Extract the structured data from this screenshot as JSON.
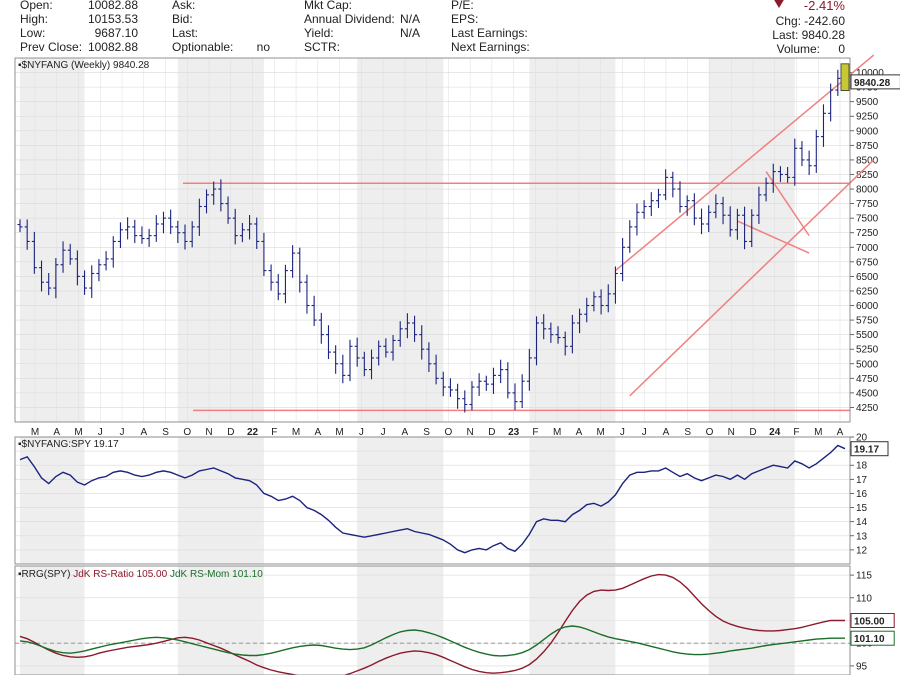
{
  "quote": {
    "col1": [
      {
        "label": "Open:",
        "value": "10082.88"
      },
      {
        "label": "High:",
        "value": "10153.53"
      },
      {
        "label": "Low:",
        "value": "9687.10"
      },
      {
        "label": "Prev Close:",
        "value": "10082.88"
      }
    ],
    "col2": [
      {
        "label": "Ask:",
        "value": ""
      },
      {
        "label": "Bid:",
        "value": ""
      },
      {
        "label": "Last:",
        "value": ""
      },
      {
        "label": "Optionable:",
        "value": "no"
      }
    ],
    "col3": [
      {
        "label": "Mkt Cap:",
        "value": ""
      },
      {
        "label": "Annual Dividend:",
        "value": "N/A"
      },
      {
        "label": "Yield:",
        "value": "N/A"
      },
      {
        "label": "SCTR:",
        "value": ""
      }
    ],
    "col4": [
      {
        "label": "P/E:",
        "value": ""
      },
      {
        "label": "EPS:",
        "value": ""
      },
      {
        "label": "Last Earnings:",
        "value": ""
      },
      {
        "label": "Next Earnings:",
        "value": ""
      }
    ],
    "pct_change": "-2.41%",
    "chg": "Chg: -242.60",
    "last": "Last: 9840.28",
    "volume_label": "Volume:",
    "volume_value": "0",
    "down_color": "#8b1a2b"
  },
  "chart_data": [
    {
      "type": "ohlc",
      "title": "$NYFANG (Weekly) 9840.28",
      "last_label": "9840.28",
      "series_color": "#1a237e",
      "ylim": [
        4000,
        10250
      ],
      "yticks": [
        4250,
        4500,
        4750,
        5000,
        5250,
        5500,
        5750,
        6000,
        6250,
        6500,
        6750,
        7000,
        7250,
        7500,
        7750,
        8000,
        8250,
        8500,
        8750,
        9000,
        9250,
        9500,
        9750,
        10000
      ],
      "xticks": [
        "M",
        "A",
        "M",
        "J",
        "J",
        "A",
        "S",
        "O",
        "N",
        "D",
        "22",
        "F",
        "M",
        "A",
        "M",
        "J",
        "J",
        "A",
        "S",
        "O",
        "N",
        "D",
        "23",
        "F",
        "M",
        "A",
        "M",
        "J",
        "J",
        "A",
        "S",
        "O",
        "N",
        "D",
        "24",
        "F",
        "M",
        "A"
      ],
      "closes": [
        7350,
        7100,
        6650,
        6400,
        6300,
        6700,
        6950,
        6800,
        6500,
        6300,
        6550,
        6700,
        6800,
        7100,
        7300,
        7350,
        7200,
        7150,
        7200,
        7400,
        7500,
        7350,
        7250,
        7100,
        7350,
        7700,
        7900,
        8000,
        7750,
        7500,
        7200,
        7300,
        7400,
        7100,
        6600,
        6400,
        6200,
        6600,
        6900,
        6400,
        6000,
        5750,
        5500,
        5200,
        5000,
        4800,
        5300,
        5100,
        4900,
        5100,
        5300,
        5200,
        5400,
        5600,
        5700,
        5500,
        5250,
        5000,
        4750,
        4600,
        4550,
        4400,
        4300,
        4600,
        4700,
        4650,
        4800,
        4900,
        4500,
        4350,
        4700,
        5100,
        5700,
        5600,
        5500,
        5450,
        5300,
        5700,
        5850,
        6000,
        6150,
        6000,
        6200,
        6550,
        7000,
        7350,
        7600,
        7700,
        7800,
        7900,
        8200,
        8000,
        7700,
        7800,
        7500,
        7400,
        7600,
        7750,
        7550,
        7300,
        7550,
        7100,
        7550,
        7900,
        8100,
        8300,
        8250,
        8200,
        8700,
        8500,
        8400,
        8900,
        9300,
        9700,
        9900,
        9840
      ],
      "hlines": [
        {
          "y": 8100,
          "label": ""
        },
        {
          "y": 4200,
          "label": ""
        }
      ],
      "channel": [
        {
          "from": [
            83,
            6600
          ],
          "to": [
            119,
            10300
          ]
        },
        {
          "from": [
            85,
            4450
          ],
          "to": [
            119,
            8500
          ]
        },
        {
          "from": [
            104,
            8300
          ],
          "to": [
            110,
            7200
          ]
        },
        {
          "from": [
            100,
            7450
          ],
          "to": [
            110,
            6900
          ]
        }
      ]
    },
    {
      "type": "line",
      "title": "$NYFANG:SPY 19.17",
      "last_label": "19.17",
      "series_color": "#1a237e",
      "ylim": [
        11,
        20
      ],
      "yticks": [
        12,
        13,
        14,
        15,
        16,
        17,
        18,
        19,
        20
      ],
      "values": [
        18.4,
        18.6,
        17.9,
        17.1,
        16.7,
        17.2,
        17.5,
        17.3,
        16.8,
        16.6,
        16.9,
        17.1,
        17.2,
        17.5,
        17.6,
        17.5,
        17.3,
        17.2,
        17.3,
        17.5,
        17.6,
        17.5,
        17.3,
        17.1,
        17.3,
        17.6,
        17.7,
        17.8,
        17.6,
        17.4,
        17.1,
        17.0,
        16.9,
        16.6,
        16.0,
        15.8,
        15.5,
        15.6,
        15.8,
        15.5,
        15.0,
        14.8,
        14.5,
        14.1,
        13.6,
        13.2,
        13.1,
        13.0,
        12.9,
        13.0,
        13.1,
        13.2,
        13.3,
        13.4,
        13.5,
        13.3,
        13.2,
        13.1,
        12.9,
        12.7,
        12.4,
        12.0,
        11.8,
        12.0,
        12.1,
        12.0,
        12.3,
        12.5,
        12.1,
        11.9,
        12.4,
        13.1,
        14.0,
        14.2,
        14.1,
        14.1,
        14.0,
        14.5,
        14.8,
        15.2,
        15.3,
        15.1,
        15.4,
        15.9,
        16.7,
        17.3,
        17.5,
        17.5,
        17.6,
        17.6,
        17.8,
        17.5,
        17.2,
        17.4,
        17.1,
        16.9,
        17.1,
        17.3,
        17.2,
        17.0,
        17.3,
        17.0,
        17.4,
        17.6,
        17.8,
        18.0,
        17.9,
        17.8,
        18.3,
        18.1,
        17.8,
        18.1,
        18.5,
        18.9,
        19.4,
        19.17
      ]
    },
    {
      "type": "line",
      "title": "RRG(SPY)",
      "ylim": [
        93,
        117
      ],
      "yticks": [
        95,
        100,
        105,
        110,
        115
      ],
      "ref_line": 100,
      "series": [
        {
          "name": "JdK RS-Ratio 105.00",
          "color": "#8b1a2b",
          "last_label": "105.00",
          "values": [
            101.5,
            101.0,
            100.2,
            99.3,
            98.5,
            97.8,
            97.3,
            97.0,
            96.9,
            97.0,
            97.3,
            97.8,
            98.2,
            98.5,
            98.8,
            99.1,
            99.3,
            99.5,
            99.7,
            100.0,
            100.4,
            100.8,
            101.2,
            101.3,
            101.1,
            100.7,
            100.1,
            99.5,
            98.9,
            98.2,
            97.4,
            96.7,
            96.0,
            95.2,
            94.6,
            94.1,
            93.7,
            93.4,
            93.1,
            92.8,
            92.5,
            92.3,
            92.2,
            92.3,
            92.5,
            92.8,
            93.3,
            93.9,
            94.5,
            95.2,
            96.0,
            96.7,
            97.3,
            97.8,
            98.1,
            98.3,
            98.2,
            97.9,
            97.5,
            96.9,
            96.2,
            95.5,
            94.8,
            94.2,
            93.8,
            93.5,
            93.4,
            93.5,
            93.7,
            94.0,
            94.5,
            95.3,
            96.5,
            98.1,
            100.0,
            102.3,
            104.8,
            107.2,
            109.2,
            110.6,
            111.4,
            111.7,
            111.6,
            111.7,
            112.1,
            112.8,
            113.5,
            114.2,
            114.8,
            115.1,
            115.0,
            114.5,
            113.5,
            112.1,
            110.4,
            108.7,
            107.2,
            105.9,
            104.9,
            104.2,
            103.7,
            103.3,
            103.0,
            102.8,
            102.7,
            102.7,
            102.8,
            103.0,
            103.2,
            103.5,
            103.9,
            104.3,
            104.7,
            105.0,
            105.0,
            105.0
          ]
        },
        {
          "name": "JdK RS-Mom 101.10",
          "color": "#1b6e2a",
          "last_label": "101.10",
          "values": [
            100.5,
            100.3,
            99.9,
            99.3,
            98.7,
            98.2,
            97.9,
            97.8,
            98.0,
            98.3,
            98.7,
            99.1,
            99.5,
            99.8,
            100.1,
            100.4,
            100.7,
            101.0,
            101.2,
            101.3,
            101.2,
            101.0,
            100.7,
            100.3,
            99.9,
            99.5,
            99.1,
            98.7,
            98.3,
            97.9,
            97.6,
            97.4,
            97.3,
            97.3,
            97.5,
            97.8,
            98.2,
            98.6,
            99.0,
            99.3,
            99.5,
            99.6,
            99.5,
            99.2,
            98.9,
            98.7,
            98.6,
            98.7,
            99.0,
            99.6,
            100.4,
            101.2,
            101.9,
            102.5,
            102.8,
            102.9,
            102.7,
            102.3,
            101.8,
            101.2,
            100.5,
            99.8,
            99.1,
            98.5,
            98.0,
            97.6,
            97.3,
            97.2,
            97.3,
            97.5,
            97.9,
            98.6,
            99.6,
            100.8,
            102.0,
            103.0,
            103.6,
            103.8,
            103.6,
            103.1,
            102.5,
            101.9,
            101.4,
            101.0,
            100.7,
            100.4,
            100.1,
            99.7,
            99.3,
            98.9,
            98.5,
            98.1,
            97.8,
            97.6,
            97.5,
            97.5,
            97.6,
            97.8,
            98.0,
            98.3,
            98.5,
            98.7,
            98.9,
            99.2,
            99.5,
            99.7,
            99.9,
            100.1,
            100.3,
            100.5,
            100.7,
            100.9,
            101.0,
            101.1,
            101.1,
            101.1
          ]
        }
      ]
    }
  ]
}
